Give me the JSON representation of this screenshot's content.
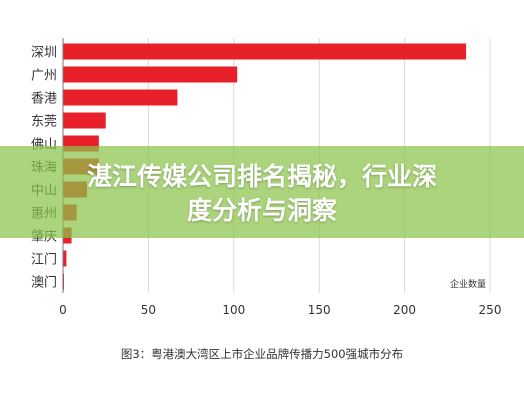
{
  "headline": {
    "line1": "湛江传媒公司排名揭秘，行业深",
    "line2": "度分析与洞察"
  },
  "caption": "图3：粤港澳大湾区上市企业品牌传播力500强城市分布",
  "colors": {
    "bar": "#e8202a",
    "banner": "#8bc34a",
    "axis": "#777777",
    "grid": "#d8d8d8",
    "label": "#333333"
  },
  "chart_data": {
    "type": "bar",
    "orientation": "horizontal",
    "categories": [
      "深圳",
      "广州",
      "香港",
      "东莞",
      "佛山",
      "珠海",
      "中山",
      "惠州",
      "肇庆",
      "江门",
      "澳门"
    ],
    "series": [
      {
        "values": [
          236,
          102,
          67,
          25,
          21,
          21,
          14,
          8,
          5,
          2,
          0.5
        ]
      }
    ],
    "xlim": [
      0,
      250
    ],
    "xticks": [
      0,
      50,
      100,
      150,
      200,
      250
    ],
    "xlabel": "企业数量",
    "grid": true
  }
}
